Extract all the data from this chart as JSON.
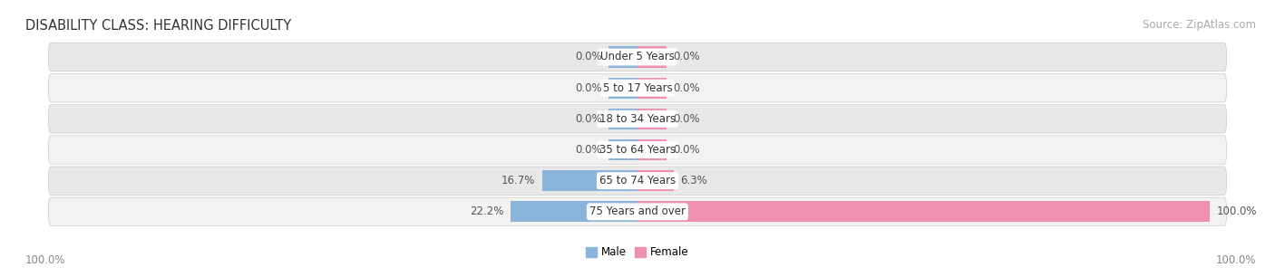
{
  "title": "DISABILITY CLASS: HEARING DIFFICULTY",
  "source": "Source: ZipAtlas.com",
  "categories": [
    "Under 5 Years",
    "5 to 17 Years",
    "18 to 34 Years",
    "35 to 64 Years",
    "65 to 74 Years",
    "75 Years and over"
  ],
  "male_values": [
    0.0,
    0.0,
    0.0,
    0.0,
    16.7,
    22.2
  ],
  "female_values": [
    0.0,
    0.0,
    0.0,
    0.0,
    6.3,
    100.0
  ],
  "male_color": "#8ab4d9",
  "female_color": "#f090b0",
  "row_bg_colors": [
    "#f2f2f2",
    "#e8e8e8"
  ],
  "max_val": 100.0,
  "title_fontsize": 10.5,
  "source_fontsize": 8.5,
  "label_fontsize": 8.5,
  "cat_fontsize": 8.5,
  "stub_size": 5.0
}
